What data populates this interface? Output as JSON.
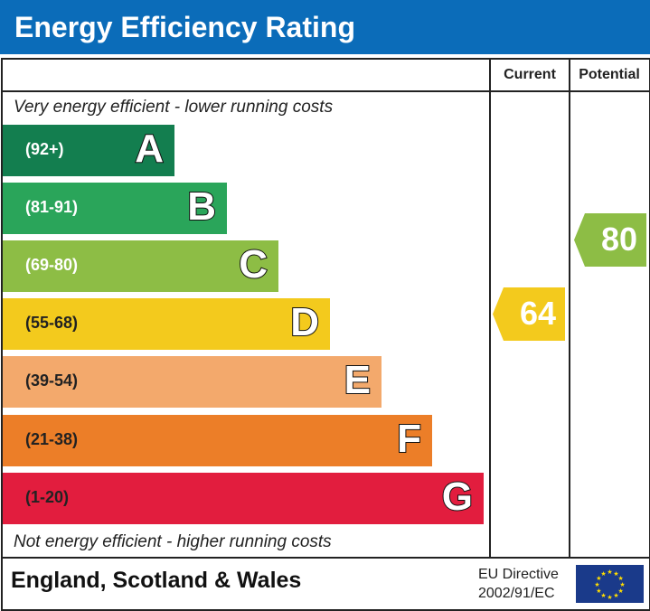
{
  "title": "Energy Efficiency Rating",
  "columns": {
    "current": "Current",
    "potential": "Potential"
  },
  "top_note": "Very energy efficient - lower running costs",
  "bottom_note": "Not energy efficient - higher running costs",
  "footer": {
    "region": "England, Scotland & Wales",
    "directive_line1": "EU Directive",
    "directive_line2": "2002/91/EC",
    "flag_icon": "eu-flag-icon"
  },
  "chart_data": {
    "type": "bar",
    "bands": [
      {
        "letter": "A",
        "range": "(92+)",
        "color": "#137e4f"
      },
      {
        "letter": "B",
        "range": "(81-91)",
        "color": "#2aa55a"
      },
      {
        "letter": "C",
        "range": "(69-80)",
        "color": "#8dbd45"
      },
      {
        "letter": "D",
        "range": "(55-68)",
        "color": "#f3ca1d"
      },
      {
        "letter": "E",
        "range": "(39-54)",
        "color": "#f3a96c"
      },
      {
        "letter": "F",
        "range": "(21-38)",
        "color": "#ec7e28"
      },
      {
        "letter": "G",
        "range": "(1-20)",
        "color": "#e21d3e"
      }
    ],
    "current": {
      "value": "64",
      "band": "D",
      "color": "#f3ca1d"
    },
    "potential": {
      "value": "80",
      "band": "C",
      "color": "#8dbd45"
    }
  }
}
